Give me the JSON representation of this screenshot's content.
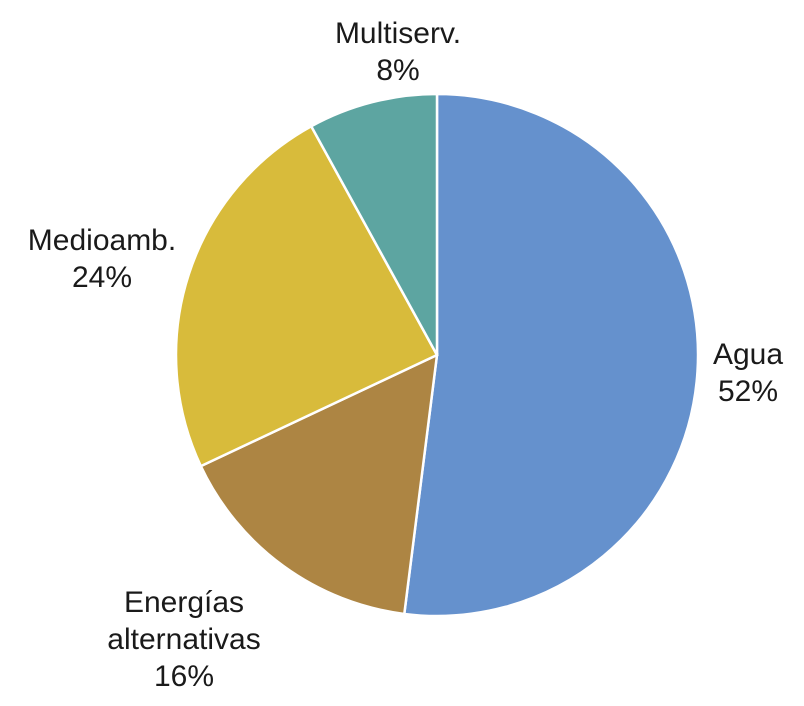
{
  "chart_data": {
    "type": "pie",
    "title": "",
    "start_angle_deg": 0,
    "direction": "clockwise",
    "slices": [
      {
        "name": "Agua",
        "label_lines": [
          "Agua"
        ],
        "value": 52,
        "value_label": "52%",
        "color": "#6591CD"
      },
      {
        "name": "Energías alternativas",
        "label_lines": [
          "Energías",
          "alternativas"
        ],
        "value": 16,
        "value_label": "16%",
        "color": "#AD8543"
      },
      {
        "name": "Medioamb.",
        "label_lines": [
          "Medioamb."
        ],
        "value": 24,
        "value_label": "24%",
        "color": "#D8BB3B"
      },
      {
        "name": "Multiserv.",
        "label_lines": [
          "Multiserv."
        ],
        "value": 8,
        "value_label": "8%",
        "color": "#5DA5A1"
      }
    ],
    "legend": "none",
    "labels_position": "outside"
  }
}
